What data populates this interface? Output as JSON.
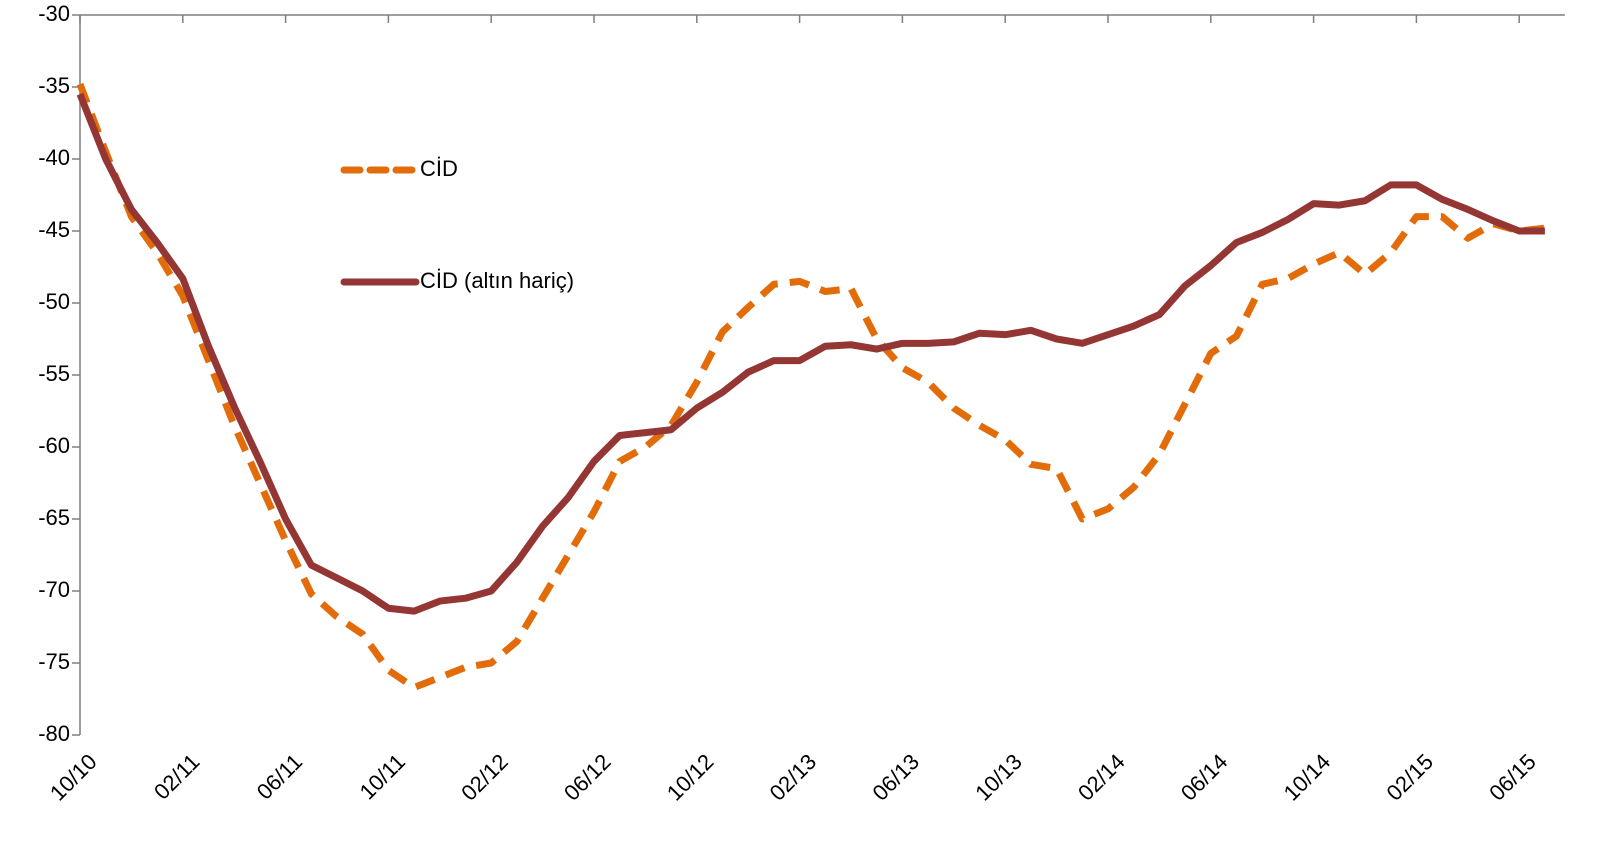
{
  "chart_data": {
    "type": "line",
    "categories": [
      "10/10",
      null,
      null,
      null,
      "02/11",
      null,
      null,
      null,
      "06/11",
      null,
      null,
      null,
      "10/11",
      null,
      null,
      null,
      "02/12",
      null,
      null,
      null,
      "06/12",
      null,
      null,
      null,
      "10/12",
      null,
      null,
      null,
      "02/13",
      null,
      null,
      null,
      "06/13",
      null,
      null,
      null,
      "10/13",
      null,
      null,
      null,
      "02/14",
      null,
      null,
      null,
      "06/14",
      null,
      null,
      null,
      "10/14",
      null,
      null,
      null,
      "02/15",
      null,
      null,
      null,
      "06/15",
      null
    ],
    "series": [
      {
        "name": "CİD",
        "color": "#e36c0a",
        "dashed": true,
        "values": [
          -34.8,
          -39.5,
          -44,
          -46.5,
          -49.5,
          -54,
          -58.5,
          -62.5,
          -66.5,
          -70.2,
          -71.8,
          -73,
          -75.5,
          -76.7,
          -76,
          -75.3,
          -75,
          -73.5,
          -70.5,
          -67.5,
          -64.5,
          -61,
          -60,
          -58.5,
          -55.5,
          -52,
          -50.3,
          -48.7,
          -48.5,
          -49.2,
          -49,
          -52.5,
          -54.5,
          -55.5,
          -57.3,
          -58.5,
          -59.5,
          -61.2,
          -61.5,
          -65,
          -64.3,
          -62.8,
          -60.5,
          -57,
          -53.5,
          -52.3,
          -48.7,
          -48.3,
          -47.3,
          -46.5,
          -48,
          -46.5,
          -44,
          -44,
          -45.5,
          -44.5,
          -45,
          -44.8
        ]
      },
      {
        "name": "CİD (altın hariç)",
        "color": "#943634",
        "dashed": false,
        "values": [
          -35.5,
          -40,
          -43.5,
          -45.8,
          -48.3,
          -53,
          -57.2,
          -61,
          -65,
          -68.2,
          -69.1,
          -70,
          -71.2,
          -71.4,
          -70.7,
          -70.5,
          -70,
          -68,
          -65.5,
          -63.5,
          -61,
          -59.2,
          -59,
          -58.8,
          -57.3,
          -56.2,
          -54.8,
          -54,
          -54,
          -53,
          -52.9,
          -53.2,
          -52.8,
          -52.8,
          -52.7,
          -52.1,
          -52.2,
          -51.9,
          -52.5,
          -52.8,
          -52.2,
          -51.6,
          -50.8,
          -48.8,
          -47.4,
          -45.8,
          -45.1,
          -44.2,
          -43.1,
          -43.2,
          -42.9,
          -41.8,
          -41.8,
          -42.8,
          -43.5,
          -44.3,
          -45,
          -45
        ]
      }
    ],
    "ylim": [
      -80,
      -30
    ],
    "yticks": [
      -80,
      -75,
      -70,
      -65,
      -60,
      -55,
      -50,
      -45,
      -40,
      -35,
      -30
    ],
    "grid": false,
    "legend": "upper-left"
  }
}
